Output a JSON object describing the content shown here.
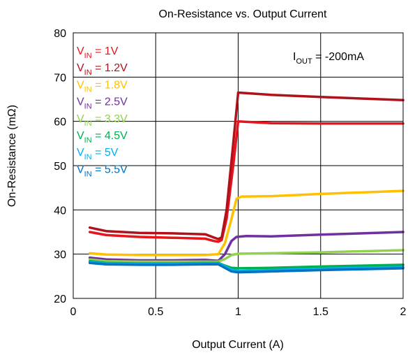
{
  "chart_data": {
    "type": "line",
    "title": "On-Resistance vs. Output Current",
    "xlabel": "Output Current (A)",
    "ylabel": "On-Resistance (mΩ)",
    "xlim": [
      0,
      2
    ],
    "ylim": [
      20,
      80
    ],
    "xticks": [
      0,
      0.5,
      1,
      1.5,
      2
    ],
    "xtick_labels": [
      "0",
      "0.5",
      "1",
      "1.5",
      "2"
    ],
    "yticks": [
      20,
      30,
      40,
      50,
      60,
      70,
      80
    ],
    "ytick_labels": [
      "20",
      "30",
      "40",
      "50",
      "60",
      "70",
      "80"
    ],
    "grid": true,
    "legend_position": "top-left",
    "annotation": {
      "main": "I",
      "sub": "OUT",
      "rest": " = -200mA"
    },
    "series": [
      {
        "name": "VIN = 1V",
        "label_main": "V",
        "label_sub": "IN",
        "label_rest": " = 1V",
        "color": "#e8141c",
        "x": [
          0.1,
          0.2,
          0.4,
          0.6,
          0.8,
          0.85,
          0.88,
          0.9,
          0.93,
          0.97,
          1.0,
          1.2,
          1.5,
          2.0
        ],
        "y": [
          35.0,
          34.3,
          33.9,
          33.7,
          33.5,
          33.0,
          32.8,
          33.2,
          38.0,
          50.0,
          60.0,
          59.6,
          59.5,
          59.5
        ]
      },
      {
        "name": "VIN = 1.2V",
        "label_main": "V",
        "label_sub": "IN",
        "label_rest": " = 1.2V",
        "color": "#b0121b",
        "x": [
          0.1,
          0.2,
          0.4,
          0.6,
          0.8,
          0.85,
          0.88,
          0.9,
          0.93,
          0.97,
          1.0,
          1.2,
          1.5,
          2.0
        ],
        "y": [
          36.0,
          35.2,
          34.8,
          34.7,
          34.5,
          33.8,
          33.4,
          33.8,
          40.0,
          55.0,
          66.5,
          66.0,
          65.5,
          64.8
        ]
      },
      {
        "name": "VIN = 1.8V",
        "label_main": "V",
        "label_sub": "IN",
        "label_rest": " = 1.8V",
        "color": "#ffc000",
        "x": [
          0.1,
          0.2,
          0.4,
          0.6,
          0.8,
          0.88,
          0.92,
          0.96,
          0.99,
          1.02,
          1.2,
          1.5,
          2.0
        ],
        "y": [
          30.2,
          29.9,
          29.8,
          29.8,
          29.8,
          30.0,
          32.5,
          38.0,
          42.5,
          43.0,
          43.1,
          43.6,
          44.3
        ]
      },
      {
        "name": "VIN = 2.5V",
        "label_main": "V",
        "label_sub": "IN",
        "label_rest": " = 2.5V",
        "color": "#7030a0",
        "x": [
          0.1,
          0.2,
          0.4,
          0.6,
          0.8,
          0.88,
          0.92,
          0.96,
          0.99,
          1.05,
          1.2,
          1.5,
          2.0
        ],
        "y": [
          29.2,
          28.8,
          28.6,
          28.6,
          28.7,
          28.5,
          30.0,
          33.0,
          33.9,
          34.1,
          34.0,
          34.4,
          35.0
        ]
      },
      {
        "name": "VIN = 3.3V",
        "label_main": "V",
        "label_sub": "IN",
        "label_rest": " = 3.3V",
        "color": "#92d050",
        "x": [
          0.1,
          0.2,
          0.4,
          0.6,
          0.8,
          0.88,
          0.92,
          0.96,
          1.0,
          1.2,
          1.5,
          2.0
        ],
        "y": [
          28.8,
          28.4,
          28.3,
          28.3,
          28.3,
          28.3,
          28.9,
          29.8,
          30.1,
          30.2,
          30.4,
          30.9
        ]
      },
      {
        "name": "VIN = 4.5V",
        "label_main": "V",
        "label_sub": "IN",
        "label_rest": " = 4.5V",
        "color": "#00b050",
        "x": [
          0.1,
          0.2,
          0.4,
          0.6,
          0.8,
          0.88,
          0.92,
          0.96,
          1.0,
          1.2,
          1.5,
          2.0
        ],
        "y": [
          28.4,
          28.0,
          27.9,
          27.9,
          28.0,
          28.0,
          27.4,
          26.9,
          26.8,
          26.9,
          27.2,
          27.6
        ]
      },
      {
        "name": "VIN = 5V",
        "label_main": "V",
        "label_sub": "IN",
        "label_rest": " = 5V",
        "color": "#00b0f0",
        "x": [
          0.1,
          0.2,
          0.4,
          0.6,
          0.8,
          0.88,
          0.92,
          0.96,
          1.0,
          1.2,
          1.5,
          2.0
        ],
        "y": [
          28.2,
          27.9,
          27.8,
          27.8,
          27.9,
          27.9,
          27.2,
          26.5,
          26.2,
          26.4,
          26.7,
          27.1
        ]
      },
      {
        "name": "VIN = 5.5V",
        "label_main": "V",
        "label_sub": "IN",
        "label_rest": " = 5.5V",
        "color": "#0070c0",
        "x": [
          0.1,
          0.2,
          0.4,
          0.6,
          0.8,
          0.88,
          0.92,
          0.96,
          1.0,
          1.2,
          1.5,
          2.0
        ],
        "y": [
          28.0,
          27.7,
          27.6,
          27.6,
          27.7,
          27.7,
          26.9,
          26.1,
          25.9,
          26.1,
          26.4,
          26.8
        ]
      }
    ]
  }
}
